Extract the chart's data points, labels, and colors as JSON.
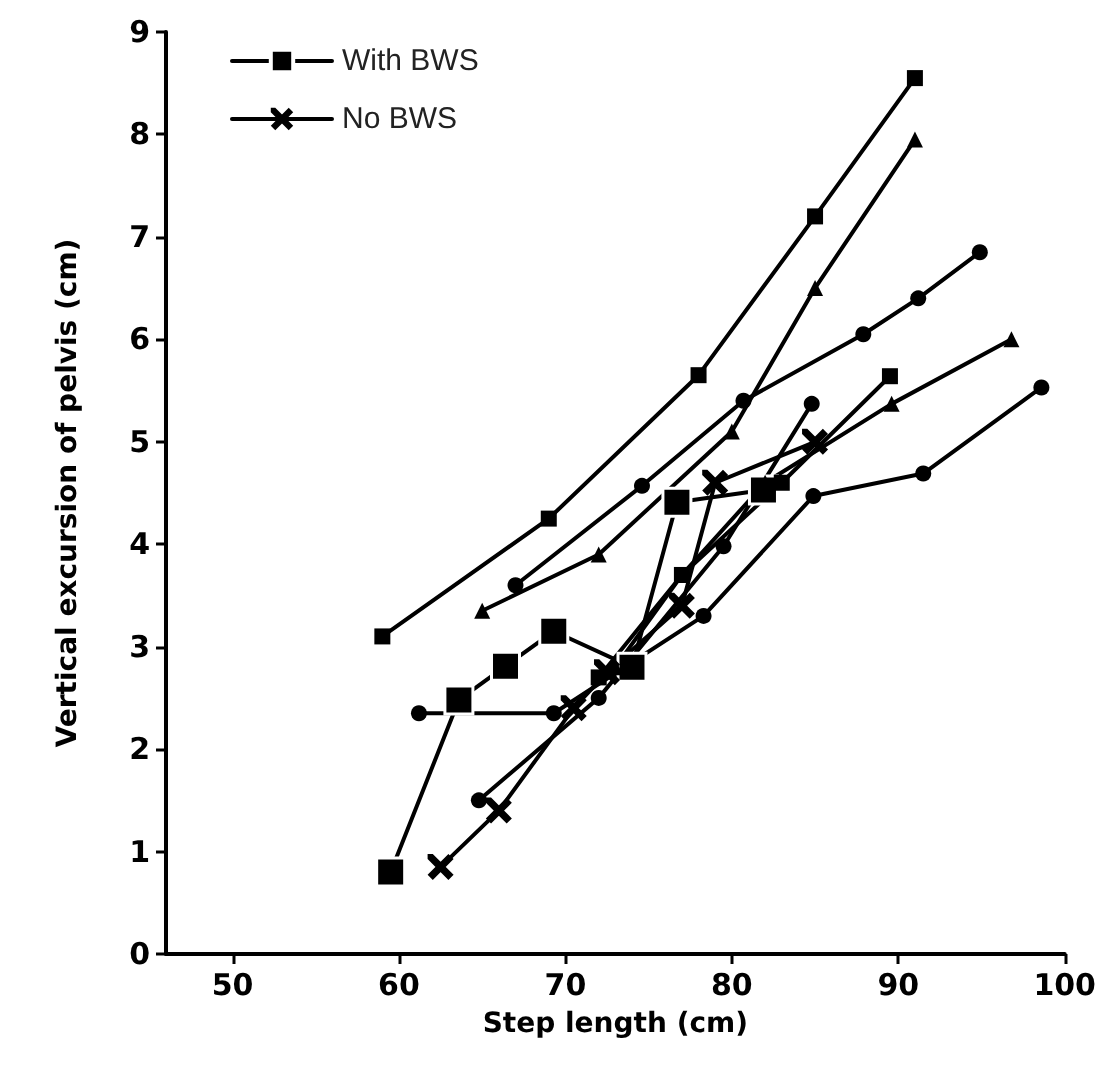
{
  "chart_data": {
    "type": "line",
    "xlabel": "Step length (cm)",
    "ylabel": "Vertical excursion of pelvis (cm)",
    "xlim": [
      46,
      100
    ],
    "xticks": [
      50,
      60,
      70,
      80,
      90,
      100
    ],
    "ylim": [
      0,
      9
    ],
    "yticks": [
      0,
      1,
      2,
      3,
      4,
      5,
      6,
      7,
      8,
      9
    ],
    "grid": false,
    "legend": "top left",
    "series": [
      {
        "name": "With BWS",
        "color": "#000000",
        "marker": "square",
        "x": [
          59.5,
          63.6,
          66.4,
          69.3,
          74,
          76.7,
          81.9
        ],
        "values": [
          0.8,
          2.48,
          2.81,
          3.15,
          2.8,
          4.41,
          4.53
        ]
      },
      {
        "name": "No BWS",
        "color": "#000000",
        "marker": "cross",
        "x": [
          62.5,
          66,
          70.5,
          72.5,
          77,
          79,
          85
        ],
        "values": [
          0.85,
          1.4,
          2.4,
          2.75,
          3.4,
          4.6,
          5.0
        ]
      },
      {
        "color": "#000000",
        "marker": "square",
        "x": [
          59,
          69,
          78,
          85,
          91
        ],
        "values": [
          3.1,
          4.25,
          5.65,
          7.2,
          8.55
        ]
      },
      {
        "color": "#000000",
        "marker": "triangle",
        "x": [
          65,
          72,
          80,
          85,
          91
        ],
        "values": [
          3.35,
          3.9,
          5.1,
          6.5,
          7.95
        ]
      },
      {
        "color": "#000000",
        "marker": "circle",
        "x": [
          67,
          74.6,
          80.7,
          87.9,
          91.2,
          94.9
        ],
        "values": [
          3.6,
          4.57,
          5.4,
          6.05,
          6.4,
          6.85
        ]
      },
      {
        "color": "#000000",
        "marker": "circle",
        "x": [
          64.8,
          72,
          79.5,
          84.8
        ],
        "values": [
          1.5,
          2.5,
          3.98,
          5.37
        ]
      },
      {
        "color": "#000000",
        "marker": "circle",
        "x": [
          61.2,
          69.3,
          78.3,
          84.9,
          91.5,
          98.6
        ],
        "values": [
          2.35,
          2.35,
          3.3,
          4.47,
          4.69,
          5.53
        ]
      },
      {
        "color": "#000000",
        "marker": "triangle",
        "x": [
          73,
          77,
          82,
          89.6,
          96.8
        ],
        "values": [
          2.8,
          3.7,
          4.6,
          5.37,
          6.0
        ]
      },
      {
        "color": "#000000",
        "marker": "square",
        "x": [
          72,
          77,
          83,
          89.5
        ],
        "values": [
          2.7,
          3.7,
          4.6,
          5.64
        ]
      }
    ]
  }
}
